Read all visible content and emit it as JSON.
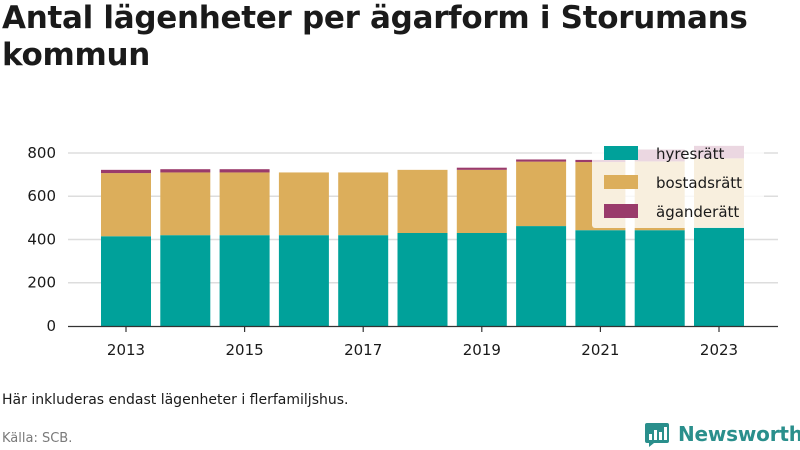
{
  "title": "Antal lägenheter per ägarform i Storumans kommun",
  "note": "Här inkluderas endast lägenheter i flerfamiljshus.",
  "source": "Källa: SCB.",
  "brand": {
    "name": "Newsworthy",
    "color": "#2a8f8c"
  },
  "chart_data": {
    "type": "bar",
    "stacked": true,
    "categories": [
      "2013",
      "2014",
      "2015",
      "2016",
      "2017",
      "2018",
      "2019",
      "2020",
      "2021",
      "2022",
      "2023"
    ],
    "x_tick_labels": [
      "2013",
      "2015",
      "2017",
      "2019",
      "2021",
      "2023"
    ],
    "series": [
      {
        "name": "hyresrätt",
        "color": "#00a19a",
        "values": [
          415,
          420,
          420,
          420,
          420,
          430,
          430,
          462,
          443,
          443,
          455
        ]
      },
      {
        "name": "bostadsrätt",
        "color": "#dcae5b",
        "values": [
          292,
          290,
          290,
          290,
          290,
          292,
          292,
          298,
          315,
          318,
          320
        ]
      },
      {
        "name": "äganderätt",
        "color": "#9a3b6b",
        "values": [
          15,
          15,
          15,
          0,
          0,
          0,
          10,
          10,
          10,
          55,
          58
        ]
      }
    ],
    "ylim": [
      0,
      860
    ],
    "yticks": [
      0,
      200,
      400,
      600,
      800
    ],
    "grid": true,
    "legend_position": "top-right"
  }
}
